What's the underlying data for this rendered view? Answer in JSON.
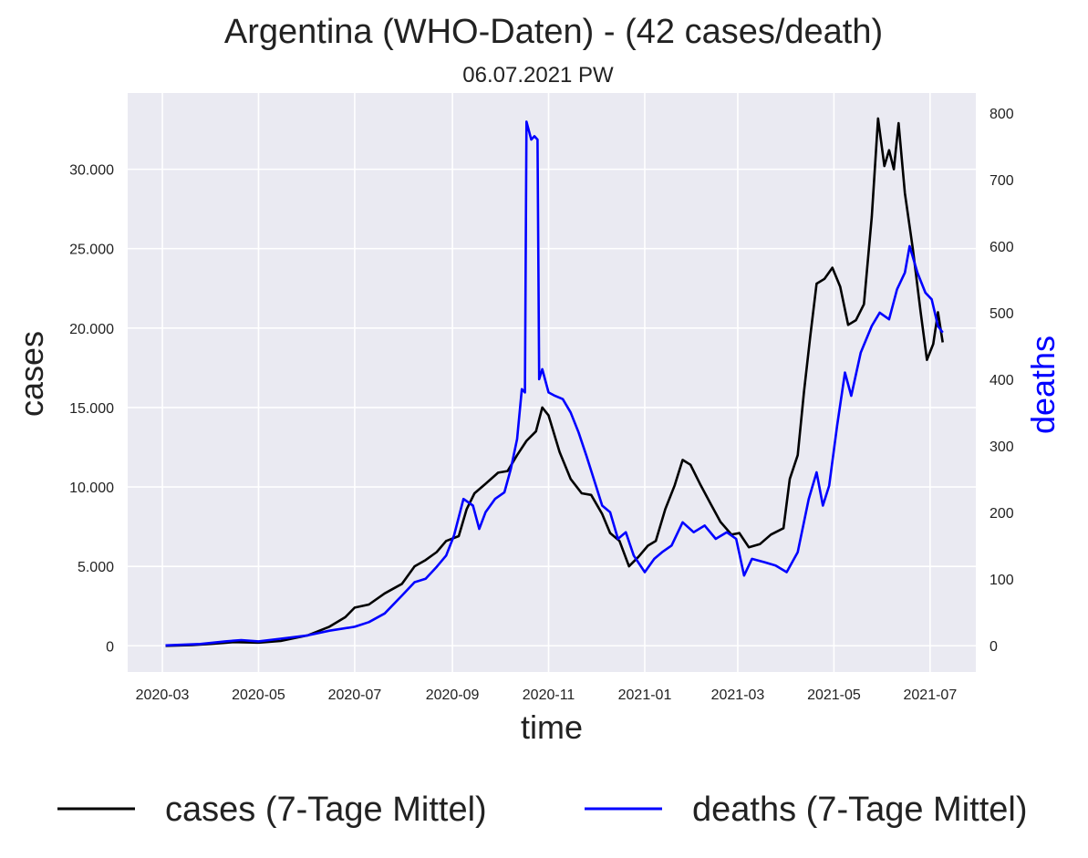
{
  "chart_data": {
    "type": "line",
    "title": "Argentina (WHO-Daten) - (42 cases/death)",
    "subtitle": "06.07.2021 PW",
    "xlabel": "time",
    "ylabel": "cases",
    "y2label": "deaths",
    "x_ticks": [
      "2020-03",
      "2020-05",
      "2020-07",
      "2020-09",
      "2020-11",
      "2021-01",
      "2021-03",
      "2021-05",
      "2021-07"
    ],
    "y_ticks": [
      {
        "value": 0,
        "label": "0"
      },
      {
        "value": 5000,
        "label": "5.000"
      },
      {
        "value": 10000,
        "label": "10.000"
      },
      {
        "value": 15000,
        "label": "15.000"
      },
      {
        "value": 20000,
        "label": "20.000"
      },
      {
        "value": 25000,
        "label": "25.000"
      },
      {
        "value": 30000,
        "label": "30.000"
      }
    ],
    "y2_ticks": [
      {
        "value": 0,
        "label": "0"
      },
      {
        "value": 100,
        "label": "100"
      },
      {
        "value": 200,
        "label": "200"
      },
      {
        "value": 300,
        "label": "300"
      },
      {
        "value": 400,
        "label": "400"
      },
      {
        "value": 500,
        "label": "500"
      },
      {
        "value": 600,
        "label": "600"
      },
      {
        "value": 700,
        "label": "700"
      },
      {
        "value": 800,
        "label": "800"
      }
    ],
    "ylim": [
      -1650,
      34800
    ],
    "y2lim": [
      -40,
      830
    ],
    "xlim": [
      "2020-02-08",
      "2021-07-30"
    ],
    "grid": true,
    "legend_position": "bottom",
    "series": [
      {
        "name": "cases (7-Tage Mittel)",
        "axis": "left",
        "color": "#000000",
        "points": [
          [
            "2020-03-03",
            0
          ],
          [
            "2020-03-20",
            50
          ],
          [
            "2020-04-01",
            120
          ],
          [
            "2020-04-15",
            230
          ],
          [
            "2020-05-01",
            200
          ],
          [
            "2020-05-15",
            300
          ],
          [
            "2020-06-01",
            650
          ],
          [
            "2020-06-15",
            1200
          ],
          [
            "2020-06-25",
            1800
          ],
          [
            "2020-07-01",
            2400
          ],
          [
            "2020-07-10",
            2600
          ],
          [
            "2020-07-20",
            3300
          ],
          [
            "2020-07-31",
            3900
          ],
          [
            "2020-08-08",
            5000
          ],
          [
            "2020-08-15",
            5400
          ],
          [
            "2020-08-22",
            5900
          ],
          [
            "2020-08-28",
            6600
          ],
          [
            "2020-09-05",
            6900
          ],
          [
            "2020-09-10",
            8600
          ],
          [
            "2020-09-15",
            9600
          ],
          [
            "2020-09-22",
            10200
          ],
          [
            "2020-09-30",
            10900
          ],
          [
            "2020-10-06",
            11000
          ],
          [
            "2020-10-12",
            12000
          ],
          [
            "2020-10-18",
            12900
          ],
          [
            "2020-10-24",
            13500
          ],
          [
            "2020-10-28",
            15000
          ],
          [
            "2020-11-01",
            14500
          ],
          [
            "2020-11-08",
            12200
          ],
          [
            "2020-11-15",
            10500
          ],
          [
            "2020-11-22",
            9600
          ],
          [
            "2020-11-28",
            9500
          ],
          [
            "2020-12-05",
            8300
          ],
          [
            "2020-12-10",
            7100
          ],
          [
            "2020-12-16",
            6600
          ],
          [
            "2020-12-22",
            5000
          ],
          [
            "2020-12-28",
            5600
          ],
          [
            "2021-01-03",
            6300
          ],
          [
            "2021-01-08",
            6600
          ],
          [
            "2021-01-14",
            8600
          ],
          [
            "2021-01-20",
            10100
          ],
          [
            "2021-01-25",
            11700
          ],
          [
            "2021-01-30",
            11400
          ],
          [
            "2021-02-05",
            10200
          ],
          [
            "2021-02-12",
            8900
          ],
          [
            "2021-02-18",
            7800
          ],
          [
            "2021-02-25",
            7000
          ],
          [
            "2021-03-02",
            7100
          ],
          [
            "2021-03-08",
            6200
          ],
          [
            "2021-03-15",
            6400
          ],
          [
            "2021-03-22",
            7000
          ],
          [
            "2021-03-30",
            7400
          ],
          [
            "2021-04-03",
            10500
          ],
          [
            "2021-04-08",
            12000
          ],
          [
            "2021-04-12",
            16000
          ],
          [
            "2021-04-16",
            19500
          ],
          [
            "2021-04-20",
            22800
          ],
          [
            "2021-04-25",
            23100
          ],
          [
            "2021-04-30",
            23800
          ],
          [
            "2021-05-05",
            22600
          ],
          [
            "2021-05-10",
            20200
          ],
          [
            "2021-05-15",
            20500
          ],
          [
            "2021-05-20",
            21500
          ],
          [
            "2021-05-25",
            27000
          ],
          [
            "2021-05-29",
            33200
          ],
          [
            "2021-06-02",
            30200
          ],
          [
            "2021-06-05",
            31200
          ],
          [
            "2021-06-08",
            30000
          ],
          [
            "2021-06-11",
            32900
          ],
          [
            "2021-06-15",
            28500
          ],
          [
            "2021-06-20",
            25000
          ],
          [
            "2021-06-25",
            21000
          ],
          [
            "2021-06-29",
            18000
          ],
          [
            "2021-07-03",
            19000
          ],
          [
            "2021-07-06",
            21000
          ],
          [
            "2021-07-09",
            19100
          ]
        ]
      },
      {
        "name": "deaths (7-Tage Mittel)",
        "axis": "right",
        "color": "#0000ff",
        "points": [
          [
            "2020-03-03",
            0
          ],
          [
            "2020-03-25",
            2
          ],
          [
            "2020-04-10",
            6
          ],
          [
            "2020-04-20",
            8
          ],
          [
            "2020-05-01",
            6
          ],
          [
            "2020-05-15",
            10
          ],
          [
            "2020-06-01",
            15
          ],
          [
            "2020-06-15",
            22
          ],
          [
            "2020-07-01",
            28
          ],
          [
            "2020-07-10",
            35
          ],
          [
            "2020-07-20",
            48
          ],
          [
            "2020-07-31",
            75
          ],
          [
            "2020-08-08",
            95
          ],
          [
            "2020-08-15",
            100
          ],
          [
            "2020-08-22",
            118
          ],
          [
            "2020-08-28",
            135
          ],
          [
            "2020-09-02",
            165
          ],
          [
            "2020-09-08",
            220
          ],
          [
            "2020-09-14",
            210
          ],
          [
            "2020-09-18",
            175
          ],
          [
            "2020-09-22",
            200
          ],
          [
            "2020-09-28",
            220
          ],
          [
            "2020-10-04",
            230
          ],
          [
            "2020-10-08",
            265
          ],
          [
            "2020-10-12",
            310
          ],
          [
            "2020-10-15",
            385
          ],
          [
            "2020-10-17",
            380
          ],
          [
            "2020-10-18",
            787
          ],
          [
            "2020-10-21",
            760
          ],
          [
            "2020-10-23",
            765
          ],
          [
            "2020-10-25",
            760
          ],
          [
            "2020-10-26",
            400
          ],
          [
            "2020-10-28",
            415
          ],
          [
            "2020-11-01",
            380
          ],
          [
            "2020-11-05",
            375
          ],
          [
            "2020-11-10",
            370
          ],
          [
            "2020-11-15",
            350
          ],
          [
            "2020-11-20",
            320
          ],
          [
            "2020-11-25",
            285
          ],
          [
            "2020-12-01",
            240
          ],
          [
            "2020-12-05",
            210
          ],
          [
            "2020-12-10",
            200
          ],
          [
            "2020-12-15",
            160
          ],
          [
            "2020-12-20",
            170
          ],
          [
            "2020-12-25",
            135
          ],
          [
            "2021-01-01",
            110
          ],
          [
            "2021-01-07",
            130
          ],
          [
            "2021-01-12",
            140
          ],
          [
            "2021-01-18",
            150
          ],
          [
            "2021-01-25",
            185
          ],
          [
            "2021-02-01",
            170
          ],
          [
            "2021-02-08",
            180
          ],
          [
            "2021-02-15",
            160
          ],
          [
            "2021-02-22",
            170
          ],
          [
            "2021-02-28",
            160
          ],
          [
            "2021-03-05",
            105
          ],
          [
            "2021-03-10",
            130
          ],
          [
            "2021-03-18",
            125
          ],
          [
            "2021-03-25",
            120
          ],
          [
            "2021-04-01",
            110
          ],
          [
            "2021-04-08",
            140
          ],
          [
            "2021-04-15",
            220
          ],
          [
            "2021-04-20",
            260
          ],
          [
            "2021-04-24",
            210
          ],
          [
            "2021-04-28",
            240
          ],
          [
            "2021-05-03",
            330
          ],
          [
            "2021-05-08",
            410
          ],
          [
            "2021-05-12",
            375
          ],
          [
            "2021-05-18",
            440
          ],
          [
            "2021-05-25",
            480
          ],
          [
            "2021-05-30",
            500
          ],
          [
            "2021-06-05",
            490
          ],
          [
            "2021-06-10",
            535
          ],
          [
            "2021-06-15",
            560
          ],
          [
            "2021-06-18",
            600
          ],
          [
            "2021-06-23",
            560
          ],
          [
            "2021-06-28",
            530
          ],
          [
            "2021-07-02",
            520
          ],
          [
            "2021-07-06",
            480
          ],
          [
            "2021-07-09",
            470
          ]
        ]
      }
    ]
  }
}
